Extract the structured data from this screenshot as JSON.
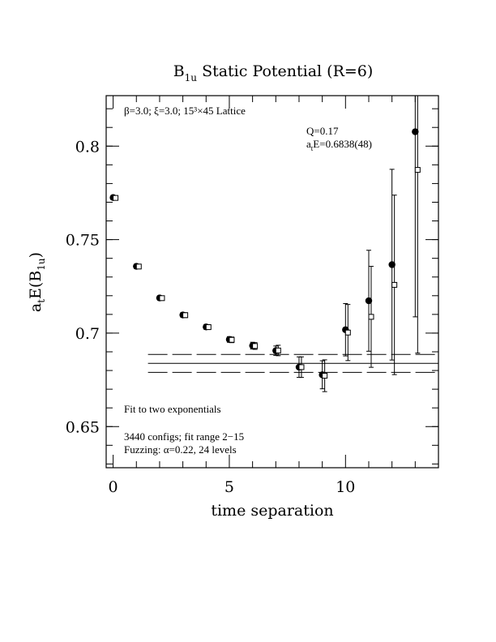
{
  "chart_data": {
    "type": "scatter",
    "title_main": "B",
    "title_sub": "1u",
    "title_rest": " Static Potential (R=6)",
    "xlabel": "time separation",
    "ylabel_main": "a",
    "ylabel_sub1": "t",
    "ylabel_mid": "E(B",
    "ylabel_sub2": "1u",
    "ylabel_end": ")",
    "xlim": [
      -0.3,
      14.0
    ],
    "ylim": [
      0.628,
      0.827
    ],
    "x_ticks": [
      0,
      5,
      10
    ],
    "y_ticks": [
      0.65,
      0.7,
      0.75,
      0.8
    ],
    "x_tick_labels": [
      "0",
      "5",
      "10"
    ],
    "y_tick_labels": [
      "0.65",
      "0.7",
      "0.75",
      "0.8"
    ],
    "annotations": {
      "lattice": "β=3.0; ξ=3.0; 15³×45 Lattice",
      "q": "Q=0.17",
      "fit_energy_main": "a",
      "fit_energy_sub": "t",
      "fit_energy_rest": "E=0.6838(48)",
      "fit_type": "Fit to two exponentials",
      "configs": "3440 configs; fit range 2−15",
      "fuzzing": "Fuzzing: α=0.22, 24 levels"
    },
    "fit": {
      "value": 0.6838,
      "error": 0.0048,
      "x_start": 1.5
    },
    "series": [
      {
        "marker": "filled-circle",
        "points": [
          {
            "x": 0,
            "y": 0.7725,
            "err": 0.0012
          },
          {
            "x": 1,
            "y": 0.7357,
            "err": 0.0012
          },
          {
            "x": 2,
            "y": 0.7188,
            "err": 0.0012
          },
          {
            "x": 3,
            "y": 0.7097,
            "err": 0.0013
          },
          {
            "x": 4,
            "y": 0.7033,
            "err": 0.0013
          },
          {
            "x": 5,
            "y": 0.6966,
            "err": 0.0015
          },
          {
            "x": 6,
            "y": 0.6933,
            "err": 0.0018
          },
          {
            "x": 7,
            "y": 0.6906,
            "err": 0.0025
          },
          {
            "x": 8,
            "y": 0.6818,
            "err": 0.0055
          },
          {
            "x": 9,
            "y": 0.6777,
            "err": 0.0075
          },
          {
            "x": 10,
            "y": 0.7018,
            "err": 0.014
          },
          {
            "x": 11,
            "y": 0.7173,
            "err": 0.027
          },
          {
            "x": 12,
            "y": 0.7366,
            "err": 0.051
          },
          {
            "x": 13,
            "y": 0.8077,
            "err": 0.099
          }
        ]
      },
      {
        "marker": "open-square",
        "points": [
          {
            "x": 0,
            "y": 0.7723,
            "err": 0.0012
          },
          {
            "x": 1,
            "y": 0.7356,
            "err": 0.0012
          },
          {
            "x": 2,
            "y": 0.7187,
            "err": 0.0012
          },
          {
            "x": 3,
            "y": 0.7096,
            "err": 0.0013
          },
          {
            "x": 4,
            "y": 0.7032,
            "err": 0.0013
          },
          {
            "x": 5,
            "y": 0.6964,
            "err": 0.0015
          },
          {
            "x": 6,
            "y": 0.6931,
            "err": 0.0018
          },
          {
            "x": 7,
            "y": 0.6907,
            "err": 0.0028
          },
          {
            "x": 8,
            "y": 0.6818,
            "err": 0.0055
          },
          {
            "x": 9,
            "y": 0.6772,
            "err": 0.0085
          },
          {
            "x": 10,
            "y": 0.7003,
            "err": 0.015
          },
          {
            "x": 11,
            "y": 0.7087,
            "err": 0.027
          },
          {
            "x": 12,
            "y": 0.7258,
            "err": 0.048
          },
          {
            "x": 13,
            "y": 0.7873,
            "err": 0.098
          }
        ]
      }
    ]
  }
}
